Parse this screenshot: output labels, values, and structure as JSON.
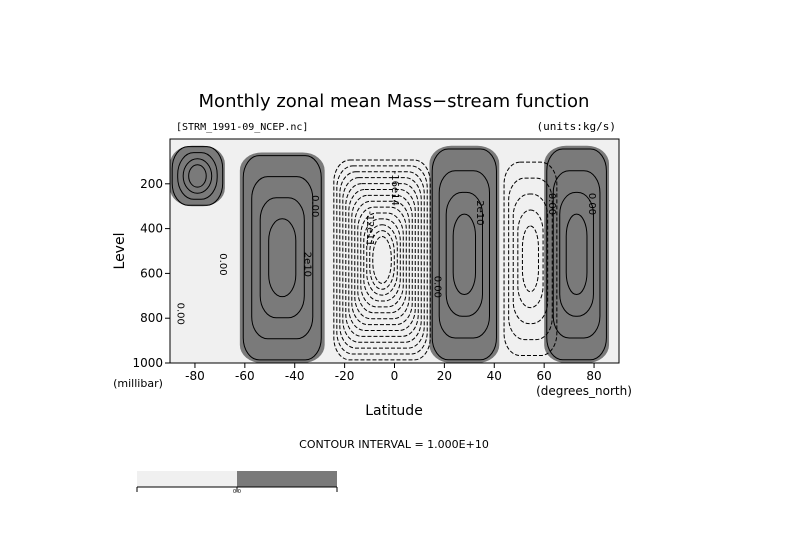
{
  "chart_data": {
    "type": "contour",
    "title": "Monthly zonal mean Mass−stream function",
    "file_label": "[STRM_1991-09_NCEP.nc]",
    "units_label": "(units:kg/s)",
    "xlabel": "Latitude",
    "xunit_label": "(degrees_north)",
    "ylabel": "Level",
    "yunit_label": "(millibar)",
    "xlim": [
      -90,
      90
    ],
    "ylim": [
      1000,
      0
    ],
    "y_scale": "linear, inverted (pressure)",
    "x_ticks": [
      {
        "value": -80,
        "label": "-80"
      },
      {
        "value": -60,
        "label": "-60"
      },
      {
        "value": -40,
        "label": "-40"
      },
      {
        "value": -20,
        "label": "-20"
      },
      {
        "value": 0,
        "label": "0"
      },
      {
        "value": 20,
        "label": "20"
      },
      {
        "value": 40,
        "label": "40"
      },
      {
        "value": 60,
        "label": "60"
      },
      {
        "value": 80,
        "label": "80"
      }
    ],
    "y_ticks": [
      {
        "value": 200,
        "label": "200"
      },
      {
        "value": 400,
        "label": "400"
      },
      {
        "value": 600,
        "label": "600"
      },
      {
        "value": 800,
        "label": "800"
      },
      {
        "value": 1000,
        "label": "1000"
      }
    ],
    "contour_interval_text": "CONTOUR INTERVAL = 1.000E+10",
    "contour_interval": 10000000000.0,
    "contour_labels": [
      {
        "lat": -36,
        "lev": 560,
        "text": "2e10"
      },
      {
        "lat": -70,
        "lev": 560,
        "text": "0.00"
      },
      {
        "lat": -33,
        "lev": 300,
        "text": "0.00"
      },
      {
        "lat": -87,
        "lev": 780,
        "text": "0.00"
      },
      {
        "lat": 16,
        "lev": 660,
        "text": "0.00"
      },
      {
        "lat": 33,
        "lev": 330,
        "text": "2e10"
      },
      {
        "lat": 62,
        "lev": 290,
        "text": "0.00"
      },
      {
        "lat": 78,
        "lev": 290,
        "text": "0.00"
      },
      {
        "lat": -11,
        "lev": 400,
        "text": "-12e11"
      },
      {
        "lat": -1,
        "lev": 220,
        "text": "-16e14"
      }
    ],
    "regions": [
      {
        "name": "southern positive cell",
        "sign": "positive",
        "lat_range": [
          -62,
          -28
        ],
        "lev_range": [
          60,
          1000
        ]
      },
      {
        "name": "southern high-latitude positive",
        "sign": "positive",
        "lat_range": [
          -90,
          -68
        ],
        "lev_range": [
          30,
          300
        ]
      },
      {
        "name": "tropical negative cell",
        "sign": "negative",
        "lat_range": [
          -26,
          16
        ],
        "lev_range": [
          80,
          1000
        ]
      },
      {
        "name": "northern positive cell",
        "sign": "positive",
        "lat_range": [
          14,
          42
        ],
        "lev_range": [
          30,
          1000
        ]
      },
      {
        "name": "northern negative cell",
        "sign": "negative",
        "lat_range": [
          43,
          66
        ],
        "lev_range": [
          90,
          980
        ]
      },
      {
        "name": "northern high-latitude positive",
        "sign": "positive",
        "lat_range": [
          60,
          86
        ],
        "lev_range": [
          30,
          1000
        ]
      }
    ],
    "shading": "positive values dark gray, negative values light gray",
    "line_styles": "solid contours positive, dashed contours negative",
    "colorbar": {
      "ticks": [
        {
          "value": 0,
          "label": "0.0"
        }
      ],
      "colors": [
        "#f0f0f0",
        "#7a7a7a"
      ]
    }
  }
}
